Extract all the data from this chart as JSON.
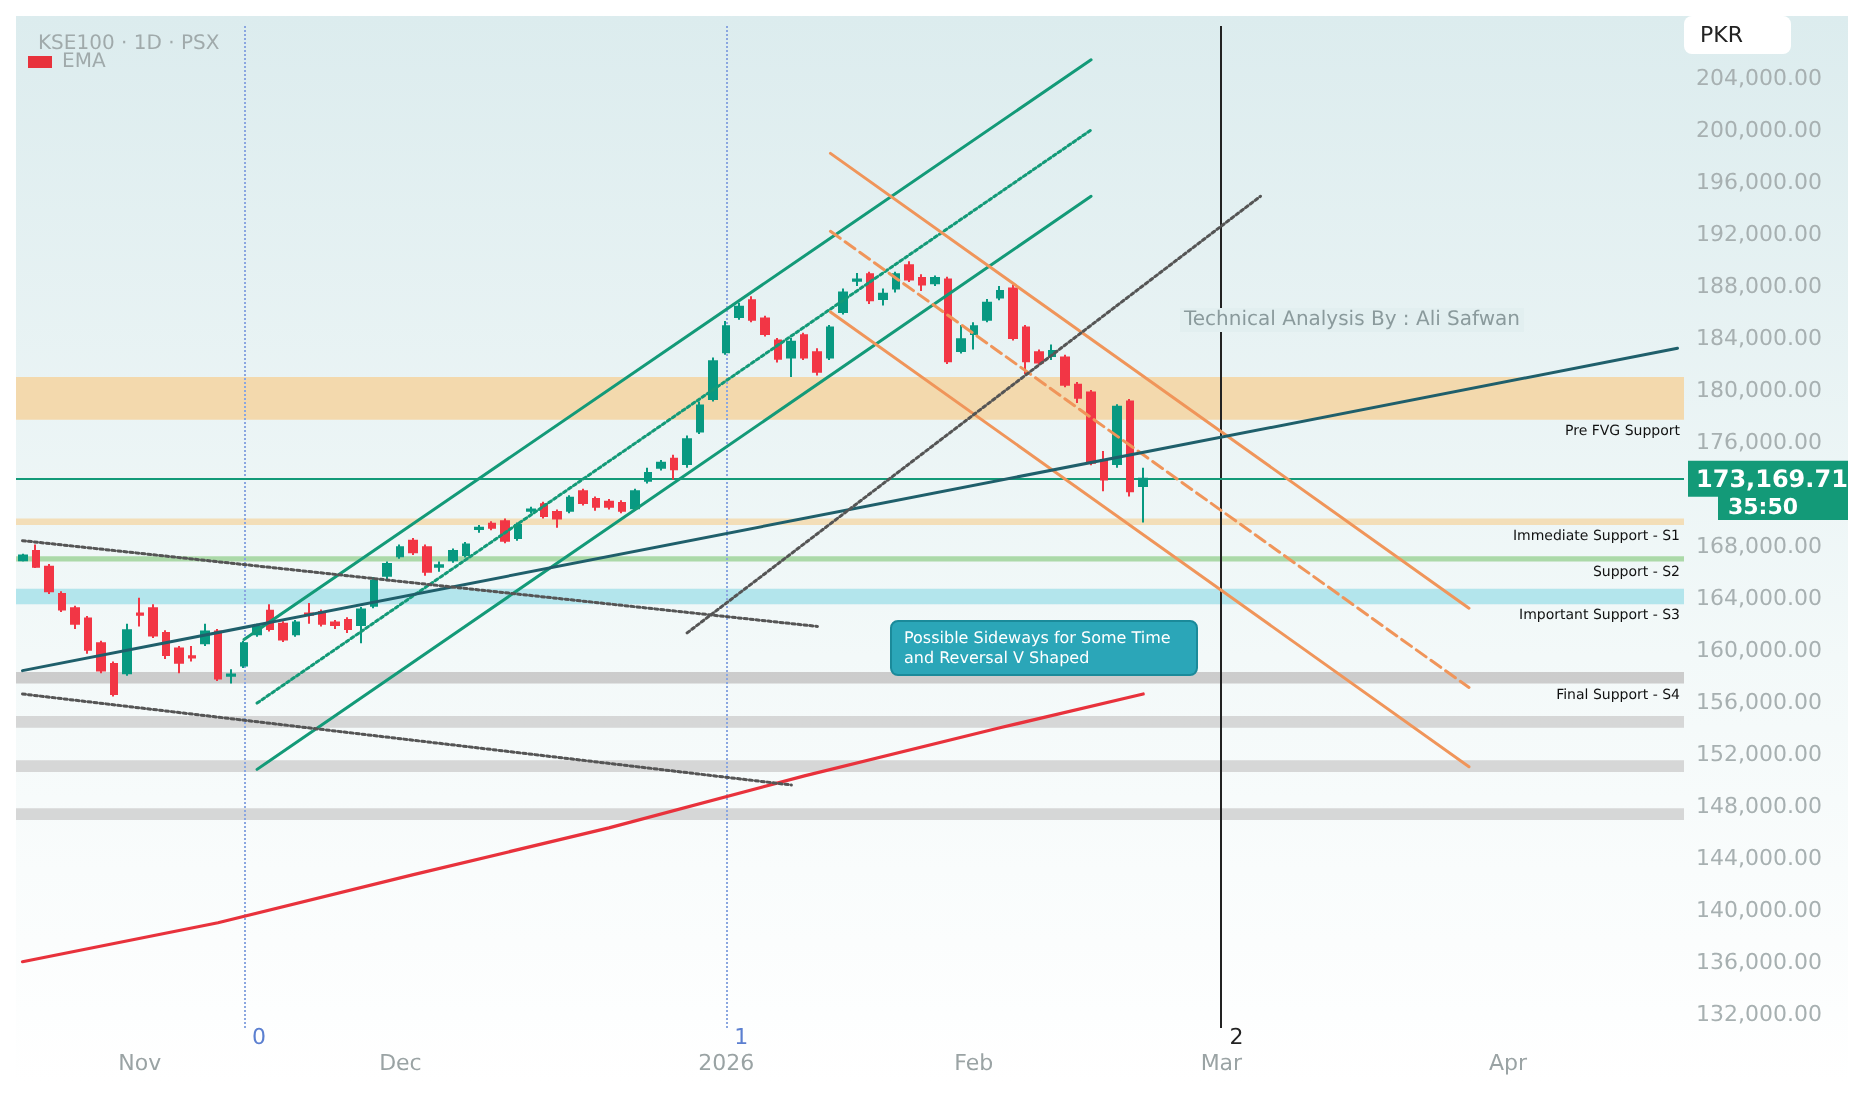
{
  "chart_data": {
    "type": "candlestick",
    "title": "KSE100 · 1D · PSX",
    "ylabel": "PKR",
    "categories": [
      null,
      null,
      null,
      null,
      null,
      null,
      null,
      null,
      null,
      "Nov",
      null,
      null,
      null,
      null,
      null,
      null,
      null,
      null,
      null,
      null,
      null,
      null,
      null,
      null,
      null,
      null,
      null,
      null,
      null,
      "Dec",
      null,
      null,
      null,
      null,
      null,
      null,
      null,
      null,
      null,
      null,
      null,
      null,
      null,
      null,
      null,
      null,
      null,
      null,
      null,
      null,
      null,
      null,
      null,
      null,
      "2026",
      null,
      null,
      null,
      null,
      null,
      null,
      null,
      null,
      null,
      null,
      null,
      null,
      null,
      null,
      null,
      null,
      null,
      null,
      "Feb",
      null,
      null,
      null,
      null,
      null,
      null,
      null,
      null,
      null,
      null,
      null,
      null,
      null,
      null,
      null,
      null,
      null,
      null,
      "Mar",
      null,
      null,
      null,
      null,
      null,
      null,
      null,
      null,
      null,
      null,
      null,
      null,
      null,
      null,
      null,
      null,
      null,
      null,
      null,
      null,
      null,
      "Apr",
      null,
      null,
      null,
      null,
      null,
      null,
      null,
      null,
      null,
      null,
      null,
      null,
      null
    ],
    "ohlc": [
      [
        166900,
        167400,
        166800,
        167250
      ],
      [
        167600,
        168100,
        166300,
        166400
      ],
      [
        166400,
        166600,
        164300,
        164500
      ],
      [
        164300,
        164500,
        162900,
        163100
      ],
      [
        163200,
        163400,
        161600,
        162000
      ],
      [
        162400,
        162600,
        159700,
        160000
      ],
      [
        160500,
        160700,
        158200,
        158400
      ],
      [
        158900,
        159100,
        156400,
        156600
      ],
      [
        158200,
        162000,
        158000,
        161500
      ],
      [
        162800,
        164000,
        161800,
        162700
      ],
      [
        163200,
        163500,
        160900,
        161100
      ],
      [
        161300,
        161500,
        159300,
        159600
      ],
      [
        160100,
        160300,
        158200,
        159000
      ],
      [
        159500,
        160300,
        159100,
        159400
      ],
      [
        160500,
        162000,
        160300,
        161400
      ],
      [
        161400,
        161600,
        157600,
        157800
      ],
      [
        158000,
        158500,
        157400,
        158100
      ],
      [
        158800,
        160700,
        158600,
        160500
      ],
      [
        161200,
        162000,
        161000,
        161800
      ],
      [
        163000,
        163500,
        161400,
        161600
      ],
      [
        162000,
        162200,
        160600,
        160800
      ],
      [
        161200,
        162300,
        161000,
        162100
      ],
      [
        162800,
        163600,
        162000,
        162700
      ],
      [
        162900,
        163100,
        161800,
        162000
      ],
      [
        162100,
        162300,
        161600,
        161900
      ],
      [
        162300,
        162500,
        161300,
        161600
      ],
      [
        161900,
        163300,
        160500,
        163100
      ],
      [
        163400,
        165600,
        163200,
        165300
      ],
      [
        165700,
        166800,
        165300,
        166600
      ],
      [
        167200,
        168100,
        167000,
        167900
      ],
      [
        168400,
        168600,
        167300,
        167500
      ],
      [
        167900,
        168100,
        165700,
        166000
      ],
      [
        166400,
        166800,
        166000,
        166500
      ],
      [
        166900,
        167800,
        166700,
        167600
      ],
      [
        167300,
        168300,
        167100,
        168100
      ],
      [
        169300,
        169600,
        169000,
        169400
      ],
      [
        169700,
        169900,
        169200,
        169400
      ],
      [
        169900,
        170100,
        168200,
        168400
      ],
      [
        168600,
        169800,
        168400,
        169600
      ],
      [
        170700,
        171000,
        170500,
        170800
      ],
      [
        171200,
        171400,
        170100,
        170300
      ],
      [
        170600,
        170800,
        169400,
        170100
      ],
      [
        170700,
        171900,
        170500,
        171700
      ],
      [
        172200,
        172400,
        171100,
        171300
      ],
      [
        171600,
        171800,
        170700,
        171000
      ],
      [
        171400,
        171600,
        170800,
        171000
      ],
      [
        171300,
        171500,
        170500,
        170700
      ],
      [
        170900,
        172400,
        170700,
        172200
      ],
      [
        173000,
        174000,
        172800,
        173600
      ],
      [
        174000,
        174600,
        173800,
        174400
      ],
      [
        174700,
        175000,
        173100,
        173900
      ],
      [
        174300,
        176500,
        174000,
        176200
      ],
      [
        176800,
        179100,
        176600,
        178800
      ],
      [
        179300,
        182500,
        179100,
        182200
      ],
      [
        182900,
        185300,
        182700,
        184900
      ],
      [
        185600,
        186700,
        185400,
        186400
      ],
      [
        186900,
        187200,
        185200,
        185400
      ],
      [
        185500,
        185700,
        184100,
        184300
      ],
      [
        183800,
        184000,
        182100,
        182400
      ],
      [
        182500,
        184000,
        181000,
        183700
      ],
      [
        184200,
        184400,
        182300,
        182500
      ],
      [
        182900,
        183200,
        181100,
        181400
      ],
      [
        182500,
        185000,
        182300,
        184800
      ],
      [
        186000,
        187800,
        185800,
        187500
      ],
      [
        188400,
        189000,
        188000,
        188500
      ],
      [
        188900,
        189100,
        186600,
        186900
      ],
      [
        187000,
        187800,
        186500,
        187400
      ],
      [
        187800,
        189100,
        187500,
        188900
      ],
      [
        189600,
        189900,
        188300,
        188500
      ],
      [
        188600,
        188900,
        187600,
        188100
      ],
      [
        188200,
        188800,
        188000,
        188600
      ],
      [
        188500,
        188700,
        182000,
        182200
      ],
      [
        183000,
        185000,
        182800,
        183900
      ],
      [
        184300,
        185200,
        183100,
        184900
      ],
      [
        185400,
        187000,
        185200,
        186700
      ],
      [
        187100,
        188000,
        186900,
        187600
      ],
      [
        187800,
        188100,
        183800,
        184000
      ],
      [
        184800,
        185000,
        181200,
        182200
      ],
      [
        182900,
        183100,
        181900,
        182100
      ],
      [
        182600,
        183500,
        182300,
        183000
      ],
      [
        182500,
        182700,
        180200,
        180400
      ],
      [
        180400,
        180600,
        179000,
        179400
      ],
      [
        179800,
        180000,
        174200,
        174400
      ],
      [
        174600,
        175300,
        172200,
        173100
      ],
      [
        174300,
        178900,
        174000,
        178700
      ],
      [
        179100,
        179300,
        171800,
        172200
      ],
      [
        172600,
        174000,
        169800,
        173169.71
      ],
      null,
      null,
      null,
      null,
      null,
      null,
      null,
      null,
      null,
      null,
      null,
      null,
      null,
      null,
      null,
      null,
      null,
      null,
      null,
      null,
      null,
      null,
      null,
      null,
      null,
      null,
      null,
      null,
      null,
      null,
      null,
      null,
      null,
      null,
      null,
      null,
      null,
      null,
      null,
      null,
      null
    ],
    "series": [
      {
        "type": "line",
        "name": "EMA",
        "color": "#e8323c",
        "values": [
          136000,
          null,
          null,
          null,
          null,
          null,
          null,
          null,
          null,
          null,
          null,
          null,
          null,
          null,
          null,
          139000,
          null,
          null,
          null,
          null,
          null,
          null,
          null,
          null,
          null,
          null,
          null,
          null,
          null,
          null,
          142700,
          null,
          null,
          null,
          null,
          null,
          null,
          null,
          null,
          null,
          null,
          null,
          null,
          null,
          null,
          146300,
          null,
          null,
          null,
          null,
          null,
          null,
          null,
          null,
          null,
          null,
          null,
          null,
          null,
          null,
          150300,
          null,
          null,
          null,
          null,
          null,
          null,
          null,
          null,
          null,
          null,
          null,
          null,
          null,
          null,
          154000,
          null,
          null,
          null,
          null,
          null,
          null,
          null,
          null,
          null,
          null,
          156600,
          null,
          null,
          null,
          null,
          null,
          null,
          null,
          null,
          null,
          null,
          null,
          null,
          null,
          null,
          null,
          null,
          null,
          null,
          null,
          null,
          null,
          null,
          null,
          null,
          null,
          null,
          null,
          null,
          null,
          null,
          null,
          null,
          null,
          null,
          null,
          null,
          null,
          null,
          null,
          null,
          null
        ]
      },
      {
        "type": "line",
        "color": "#139a78",
        "line_style": "solid",
        "values": [
          null,
          null,
          null,
          null,
          null,
          null,
          null,
          null,
          null,
          null,
          null,
          null,
          null,
          null,
          null,
          null,
          null,
          160800,
          null,
          null,
          null,
          null,
          null,
          null,
          null,
          null,
          null,
          null,
          null,
          null,
          null,
          null,
          null,
          null,
          null,
          null,
          null,
          null,
          null,
          null,
          null,
          null,
          null,
          null,
          null,
          null,
          null,
          null,
          null,
          null,
          null,
          null,
          null,
          null,
          null,
          null,
          null,
          null,
          null,
          null,
          null,
          null,
          null,
          null,
          null,
          null,
          null,
          null,
          null,
          null,
          null,
          null,
          null,
          null,
          null,
          null,
          null,
          null,
          null,
          null,
          null,
          null,
          205400,
          null,
          null,
          null,
          null,
          null,
          null,
          null,
          null,
          null,
          null,
          null,
          null,
          null,
          null,
          null,
          null,
          null,
          null,
          null,
          null,
          null,
          null,
          null,
          null,
          null,
          null,
          null,
          null,
          null,
          null,
          null,
          null,
          null,
          null,
          null,
          null,
          null,
          null,
          null,
          null,
          null,
          null,
          null,
          null,
          null
        ]
      },
      {
        "type": "line",
        "color": "#139a78",
        "line_style": "dotted",
        "values": [
          null,
          null,
          null,
          null,
          null,
          null,
          null,
          null,
          null,
          null,
          null,
          null,
          null,
          null,
          null,
          null,
          null,
          null,
          155900,
          null,
          null,
          null,
          null,
          null,
          null,
          null,
          null,
          null,
          null,
          null,
          null,
          null,
          null,
          null,
          null,
          null,
          null,
          null,
          null,
          null,
          null,
          null,
          null,
          null,
          null,
          null,
          null,
          null,
          null,
          null,
          null,
          null,
          null,
          null,
          null,
          null,
          null,
          null,
          null,
          null,
          null,
          null,
          null,
          null,
          null,
          null,
          null,
          null,
          null,
          null,
          null,
          null,
          null,
          null,
          null,
          null,
          null,
          null,
          null,
          null,
          null,
          null,
          200000,
          null,
          null,
          null,
          null,
          null,
          null,
          null,
          null,
          null,
          null,
          null,
          null,
          null,
          null,
          null,
          null,
          null,
          null,
          null,
          null,
          null,
          null,
          null,
          null,
          null,
          null,
          null,
          null,
          null,
          null,
          null,
          null,
          null,
          null,
          null,
          null,
          null,
          null,
          null,
          null,
          null,
          null,
          null,
          null,
          null
        ]
      },
      {
        "type": "line",
        "color": "#139a78",
        "line_style": "solid",
        "values": [
          null,
          null,
          null,
          null,
          null,
          null,
          null,
          null,
          null,
          null,
          null,
          null,
          null,
          null,
          null,
          null,
          null,
          null,
          150800,
          null,
          null,
          null,
          null,
          null,
          null,
          null,
          null,
          null,
          null,
          null,
          null,
          null,
          null,
          null,
          null,
          null,
          null,
          null,
          null,
          null,
          null,
          null,
          null,
          null,
          null,
          null,
          null,
          null,
          null,
          null,
          null,
          null,
          null,
          null,
          null,
          null,
          null,
          null,
          null,
          null,
          null,
          null,
          null,
          null,
          null,
          null,
          null,
          null,
          null,
          null,
          null,
          null,
          null,
          null,
          null,
          null,
          null,
          null,
          null,
          null,
          null,
          null,
          194900,
          null,
          null,
          null,
          null,
          null,
          null,
          null,
          null,
          null,
          null,
          null,
          null,
          null,
          null,
          null,
          null,
          null,
          null,
          null,
          null,
          null,
          null,
          null,
          null,
          null,
          null,
          null,
          null,
          null,
          null,
          null,
          null,
          null,
          null,
          null,
          null,
          null,
          null,
          null,
          null,
          null,
          null,
          null,
          null,
          null
        ]
      },
      {
        "type": "line",
        "color": "#f0955a",
        "line_style": "solid",
        "values": [
          null,
          null,
          null,
          null,
          null,
          null,
          null,
          null,
          null,
          null,
          null,
          null,
          null,
          null,
          null,
          null,
          null,
          null,
          null,
          null,
          null,
          null,
          null,
          null,
          null,
          null,
          null,
          null,
          null,
          null,
          null,
          null,
          null,
          null,
          null,
          null,
          null,
          null,
          null,
          null,
          null,
          null,
          null,
          null,
          null,
          null,
          null,
          null,
          null,
          null,
          null,
          null,
          null,
          null,
          null,
          null,
          null,
          null,
          null,
          null,
          null,
          null,
          198200,
          null,
          null,
          null,
          null,
          null,
          null,
          null,
          null,
          null,
          null,
          null,
          null,
          null,
          null,
          null,
          null,
          null,
          null,
          null,
          null,
          null,
          null,
          null,
          null,
          null,
          null,
          null,
          null,
          null,
          null,
          null,
          null,
          null,
          null,
          null,
          null,
          null,
          null,
          null,
          null,
          null,
          null,
          null,
          null,
          null,
          null,
          null,
          null,
          163200,
          null,
          null,
          null,
          null,
          null,
          null,
          null,
          null,
          null,
          null,
          null,
          null,
          null,
          null,
          null,
          null
        ]
      },
      {
        "type": "line",
        "color": "#f0955a",
        "line_style": "dashed",
        "values": [
          null,
          null,
          null,
          null,
          null,
          null,
          null,
          null,
          null,
          null,
          null,
          null,
          null,
          null,
          null,
          null,
          null,
          null,
          null,
          null,
          null,
          null,
          null,
          null,
          null,
          null,
          null,
          null,
          null,
          null,
          null,
          null,
          null,
          null,
          null,
          null,
          null,
          null,
          null,
          null,
          null,
          null,
          null,
          null,
          null,
          null,
          null,
          null,
          null,
          null,
          null,
          null,
          null,
          null,
          null,
          null,
          null,
          null,
          null,
          null,
          null,
          null,
          192200,
          null,
          null,
          null,
          null,
          null,
          null,
          null,
          null,
          null,
          null,
          null,
          null,
          null,
          null,
          null,
          null,
          null,
          null,
          null,
          null,
          null,
          null,
          null,
          null,
          null,
          null,
          null,
          null,
          null,
          null,
          null,
          null,
          null,
          null,
          null,
          null,
          null,
          null,
          null,
          null,
          null,
          null,
          null,
          null,
          null,
          null,
          null,
          null,
          157100,
          null,
          null,
          null,
          null,
          null,
          null,
          null,
          null,
          null,
          null,
          null,
          null,
          null,
          null,
          null,
          null
        ]
      },
      {
        "type": "line",
        "color": "#f0955a",
        "line_style": "solid",
        "values": [
          null,
          null,
          null,
          null,
          null,
          null,
          null,
          null,
          null,
          null,
          null,
          null,
          null,
          null,
          null,
          null,
          null,
          null,
          null,
          null,
          null,
          null,
          null,
          null,
          null,
          null,
          null,
          null,
          null,
          null,
          null,
          null,
          null,
          null,
          null,
          null,
          null,
          null,
          null,
          null,
          null,
          null,
          null,
          null,
          null,
          null,
          null,
          null,
          null,
          null,
          null,
          null,
          null,
          null,
          null,
          null,
          null,
          null,
          null,
          null,
          null,
          null,
          186000,
          null,
          null,
          null,
          null,
          null,
          null,
          null,
          null,
          null,
          null,
          null,
          null,
          null,
          null,
          null,
          null,
          null,
          null,
          null,
          null,
          null,
          null,
          null,
          null,
          null,
          null,
          null,
          null,
          null,
          null,
          null,
          null,
          null,
          null,
          null,
          null,
          null,
          null,
          null,
          null,
          null,
          null,
          null,
          null,
          null,
          null,
          null,
          null,
          151000,
          null,
          null,
          null,
          null,
          null,
          null,
          null,
          null,
          null,
          null,
          null,
          null,
          null,
          null,
          null,
          null
        ]
      },
      {
        "type": "line",
        "color": "#1f5f6b",
        "line_style": "solid",
        "values": [
          158400,
          null,
          null,
          null,
          null,
          null,
          null,
          null,
          null,
          null,
          null,
          null,
          null,
          null,
          null,
          null,
          null,
          null,
          null,
          null,
          null,
          null,
          null,
          null,
          null,
          null,
          null,
          null,
          null,
          null,
          null,
          null,
          null,
          null,
          null,
          null,
          null,
          null,
          null,
          null,
          null,
          null,
          null,
          null,
          null,
          null,
          null,
          null,
          null,
          null,
          null,
          null,
          null,
          null,
          null,
          null,
          null,
          null,
          null,
          null,
          null,
          null,
          null,
          null,
          null,
          null,
          null,
          null,
          null,
          null,
          null,
          null,
          null,
          null,
          null,
          null,
          null,
          null,
          null,
          null,
          null,
          null,
          null,
          null,
          null,
          null,
          null,
          null,
          null,
          null,
          null,
          null,
          null,
          null,
          null,
          null,
          null,
          null,
          null,
          null,
          null,
          null,
          null,
          null,
          null,
          null,
          null,
          null,
          null,
          null,
          null,
          null,
          null,
          null,
          null,
          null,
          null,
          null,
          null,
          null,
          null,
          null,
          null,
          null,
          null,
          null,
          null,
          183200
        ]
      },
      {
        "type": "line",
        "color": "#555555",
        "line_style": "dotted",
        "values": [
          null,
          null,
          null,
          null,
          null,
          null,
          null,
          null,
          null,
          null,
          null,
          null,
          null,
          null,
          null,
          null,
          null,
          null,
          null,
          null,
          null,
          null,
          null,
          null,
          null,
          null,
          null,
          null,
          null,
          null,
          null,
          null,
          null,
          null,
          null,
          null,
          null,
          null,
          null,
          null,
          null,
          null,
          null,
          null,
          null,
          null,
          null,
          null,
          null,
          null,
          null,
          161300,
          null,
          null,
          null,
          null,
          null,
          null,
          null,
          null,
          null,
          null,
          null,
          null,
          null,
          null,
          null,
          null,
          null,
          null,
          null,
          null,
          null,
          null,
          null,
          null,
          null,
          null,
          null,
          null,
          null,
          null,
          null,
          null,
          null,
          null,
          null,
          null,
          null,
          null,
          null,
          null,
          null,
          null,
          null,
          194900,
          null,
          null,
          null,
          null,
          null,
          null,
          null,
          null,
          null,
          null,
          null,
          null,
          null,
          null,
          null,
          null,
          null,
          null,
          null,
          null,
          null,
          null,
          null,
          null,
          null,
          null,
          null,
          null,
          null,
          null,
          null,
          null
        ]
      },
      {
        "type": "line",
        "color": "#555555",
        "line_style": "dotted",
        "values": [
          168400,
          null,
          null,
          null,
          null,
          null,
          null,
          null,
          null,
          null,
          null,
          null,
          null,
          null,
          null,
          null,
          null,
          null,
          null,
          null,
          null,
          null,
          null,
          null,
          null,
          null,
          null,
          null,
          null,
          null,
          null,
          null,
          null,
          null,
          null,
          null,
          null,
          null,
          null,
          null,
          null,
          null,
          null,
          null,
          null,
          null,
          null,
          null,
          null,
          null,
          null,
          null,
          null,
          null,
          null,
          null,
          null,
          null,
          null,
          null,
          null,
          161800,
          null,
          null,
          null,
          null,
          null,
          null,
          null,
          null,
          null,
          null,
          null,
          null,
          null,
          null,
          null,
          null,
          null,
          null,
          null,
          null,
          null,
          null,
          null,
          null,
          null,
          null,
          null,
          null,
          null,
          null,
          null,
          null,
          null,
          null,
          null,
          null,
          null,
          null,
          null,
          null,
          null,
          null,
          null,
          null,
          null,
          null,
          null,
          null,
          null,
          null,
          null,
          null,
          null,
          null,
          null,
          null,
          null,
          null,
          null,
          null,
          null,
          null,
          null,
          null,
          null,
          null
        ]
      },
      {
        "type": "line",
        "color": "#555555",
        "line_style": "dotted",
        "values": [
          156600,
          null,
          null,
          null,
          null,
          null,
          null,
          null,
          null,
          null,
          null,
          null,
          null,
          null,
          null,
          null,
          null,
          null,
          null,
          null,
          null,
          null,
          null,
          null,
          null,
          null,
          null,
          null,
          null,
          null,
          null,
          null,
          null,
          null,
          null,
          null,
          null,
          null,
          null,
          null,
          null,
          null,
          null,
          null,
          null,
          null,
          null,
          null,
          null,
          null,
          null,
          null,
          null,
          null,
          null,
          null,
          null,
          null,
          null,
          149600,
          null,
          null,
          null,
          null,
          null,
          null,
          null,
          null,
          null,
          null,
          null,
          null,
          null,
          null,
          null,
          null,
          null,
          null,
          null,
          null,
          null,
          null,
          null,
          null,
          null,
          null,
          null,
          null,
          null,
          null,
          null,
          null,
          null,
          null,
          null,
          null,
          null,
          null,
          null,
          null,
          null,
          null,
          null,
          null,
          null,
          null,
          null,
          null,
          null,
          null,
          null,
          null,
          null,
          null,
          null,
          null,
          null,
          null,
          null,
          null,
          null,
          null,
          null,
          null,
          null,
          null,
          null,
          null
        ]
      }
    ],
    "ylim": [
      130900,
      208000
    ],
    "yticks": [
      {
        "value": 132000,
        "label": "132,000.00"
      },
      {
        "value": 136000,
        "label": "136,000.00"
      },
      {
        "value": 140000,
        "label": "140,000.00"
      },
      {
        "value": 144000,
        "label": "144,000.00"
      },
      {
        "value": 148000,
        "label": "148,000.00"
      },
      {
        "value": 152000,
        "label": "152,000.00"
      },
      {
        "value": 156000,
        "label": "156,000.00"
      },
      {
        "value": 160000,
        "label": "160,000.00"
      },
      {
        "value": 164000,
        "label": "164,000.00"
      },
      {
        "value": 168000,
        "label": "168,000.00"
      },
      {
        "value": 176000,
        "label": "176,000.00"
      },
      {
        "value": 180000,
        "label": "180,000.00"
      },
      {
        "value": 184000,
        "label": "184,000.00"
      },
      {
        "value": 188000,
        "label": "188,000.00"
      },
      {
        "value": 192000,
        "label": "192,000.00"
      },
      {
        "value": 196000,
        "label": "196,000.00"
      },
      {
        "value": 200000,
        "label": "200,000.00"
      },
      {
        "value": 204000,
        "label": "204,000.00"
      }
    ],
    "ref_lines": [
      {
        "axis": "y",
        "value": 173169.71,
        "label": "173,169.71",
        "color": "#139a78",
        "line_style": "solid"
      }
    ],
    "bands": [
      {
        "axis": "y",
        "from": 177700,
        "to": 181000,
        "label": "Pre FVG Support",
        "color": "#f5d3a0"
      },
      {
        "axis": "y",
        "from": 169600,
        "to": 170100,
        "label": "Immediate Support - S1",
        "color": "#f3d9ad"
      },
      {
        "axis": "y",
        "from": 166800,
        "to": 167200,
        "label": "Support - S2",
        "color": "#9fd49a"
      },
      {
        "axis": "y",
        "from": 163500,
        "to": 164700,
        "label": "Important Support - S3",
        "color": "#a8e2ea"
      },
      {
        "axis": "y",
        "from": 157400,
        "to": 158300,
        "label": "Final Support - S4",
        "color": "#c4c4c4"
      },
      {
        "axis": "y",
        "from": 154000,
        "to": 154900,
        "color": "#d0d0d0"
      },
      {
        "axis": "y",
        "from": 150600,
        "to": 151500,
        "color": "#d0d0d0"
      },
      {
        "axis": "y",
        "from": 146900,
        "to": 147800,
        "color": "#d0d0d0"
      }
    ],
    "annotations": [
      "Technical Analysis By : Ali Safwan",
      "Possible Sideways for Some Time and Reversal V Shaped",
      "35:50",
      "0",
      "1",
      "2"
    ],
    "legend": "top left",
    "grid": false
  }
}
